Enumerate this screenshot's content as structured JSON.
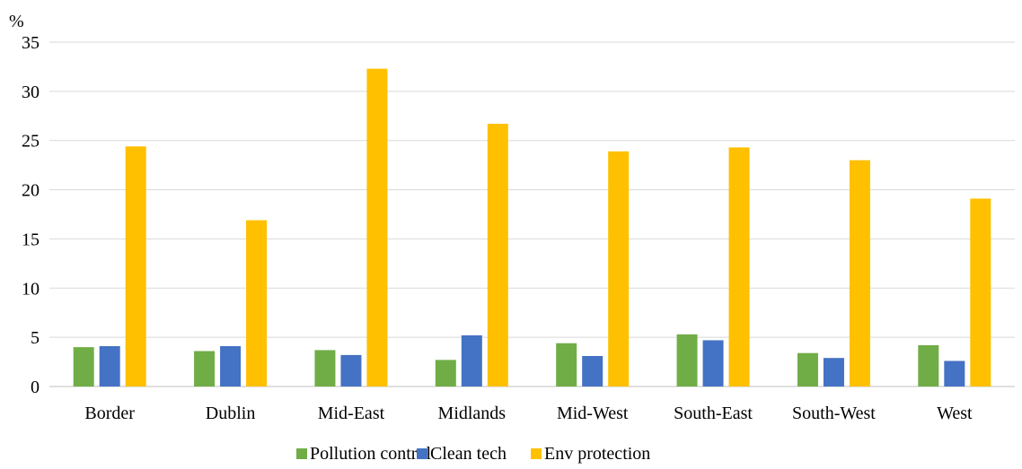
{
  "chart_data": {
    "type": "bar",
    "ylabel": "%",
    "ylim": [
      0,
      35
    ],
    "yticks": [
      0,
      5,
      10,
      15,
      20,
      25,
      30,
      35
    ],
    "grid": true,
    "legend_position": "bottom",
    "categories": [
      "Border",
      "Dublin",
      "Mid-East",
      "Midlands",
      "Mid-West",
      "South-East",
      "South-West",
      "West"
    ],
    "series": [
      {
        "name": "Pollution control",
        "color": "#70ad47",
        "values": [
          4.0,
          3.6,
          3.7,
          2.7,
          4.4,
          5.3,
          3.4,
          4.2
        ]
      },
      {
        "name": "Clean tech",
        "color": "#4472c4",
        "values": [
          4.1,
          4.1,
          3.2,
          5.2,
          3.1,
          4.7,
          2.9,
          2.6
        ]
      },
      {
        "name": "Env protection",
        "color": "#ffc000",
        "values": [
          24.4,
          16.9,
          32.3,
          26.7,
          23.9,
          24.3,
          23.0,
          19.1
        ]
      }
    ]
  }
}
